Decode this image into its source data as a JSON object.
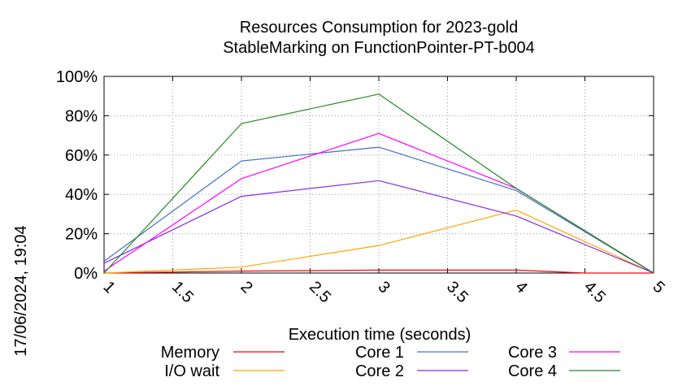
{
  "timestamp": "17/06/2024, 19:04",
  "chart_data": {
    "type": "line",
    "title": "Resources Consumption for 2023-gold",
    "subtitle": "StableMarking on FunctionPointer-PT-b004",
    "xlabel": "Execution time (seconds)",
    "ylabel": "",
    "xlim": [
      1,
      5
    ],
    "ylim": [
      0,
      100
    ],
    "x_ticks": [
      "1",
      "1.5",
      "2",
      "2.5",
      "3",
      "3.5",
      "4",
      "4.5",
      "5"
    ],
    "y_ticks": [
      "0%",
      "20%",
      "40%",
      "60%",
      "80%",
      "100%"
    ],
    "grid": true,
    "legend_position": "bottom",
    "series": [
      {
        "name": "Memory",
        "color": "#ff0000",
        "x": [
          1,
          2,
          3,
          4,
          4.5,
          5
        ],
        "values": [
          0,
          1,
          1.5,
          1.5,
          0,
          0
        ]
      },
      {
        "name": "I/O wait",
        "color": "#ffa500",
        "x": [
          1,
          2,
          3,
          4,
          5
        ],
        "values": [
          0,
          3,
          14,
          32,
          0
        ]
      },
      {
        "name": "Core 1",
        "color": "#4472c4",
        "x": [
          1,
          2,
          3,
          4,
          5
        ],
        "values": [
          6,
          57,
          64,
          42,
          0
        ]
      },
      {
        "name": "Core 2",
        "color": "#8a2be2",
        "x": [
          1,
          2,
          3,
          4,
          5
        ],
        "values": [
          5,
          39,
          47,
          29,
          0
        ]
      },
      {
        "name": "Core 3",
        "color": "#ff00ff",
        "x": [
          1,
          2,
          3,
          4,
          5
        ],
        "values": [
          1,
          48,
          71,
          43,
          0
        ]
      },
      {
        "name": "Core 4",
        "color": "#228b22",
        "x": [
          1,
          2,
          3,
          4,
          5
        ],
        "values": [
          0,
          76,
          91,
          43,
          0
        ]
      }
    ]
  }
}
